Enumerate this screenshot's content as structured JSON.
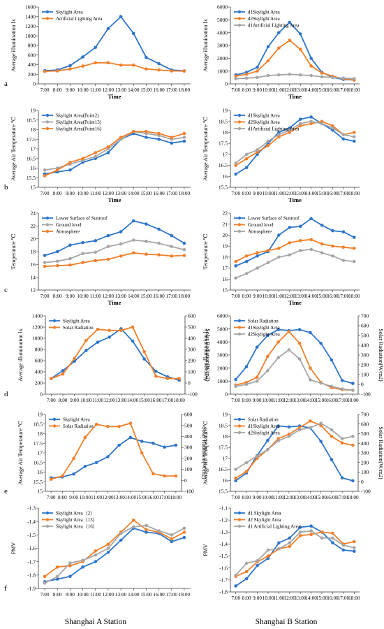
{
  "footer": {
    "left_caption": "Shanghai A Station",
    "right_caption": "Shanghai B Station"
  },
  "chart_data": [
    {
      "id": "aL",
      "type": "line",
      "panel_label": "a",
      "xlabel": "Time",
      "ylabel": "Average illumination lx",
      "categories": [
        "7:00",
        "8:00",
        "9:00",
        "10:00",
        "11:00",
        "12:00",
        "13:00",
        "14:00",
        "15:00",
        "16:00",
        "17:00",
        "18:00"
      ],
      "ylim": [
        0,
        1600
      ],
      "yticks": [
        0,
        200,
        400,
        600,
        800,
        1000,
        1200,
        1400,
        1600
      ],
      "legend": "top-left",
      "grid": false,
      "series": [
        {
          "name": "Skylight Area",
          "color": "#2e75c9",
          "values": [
            275,
            290,
            380,
            560,
            760,
            1150,
            1400,
            1050,
            550,
            420,
            290,
            270
          ]
        },
        {
          "name": "Artificial Lighting Area",
          "color": "#f07f2a",
          "values": [
            260,
            270,
            310,
            370,
            440,
            440,
            390,
            390,
            310,
            290,
            270,
            265
          ]
        }
      ]
    },
    {
      "id": "aR",
      "type": "line",
      "panel_label": "",
      "xlabel": "Time",
      "ylabel": "Average illumination lx",
      "categories": [
        "7:00",
        "8:00",
        "9:00",
        "10:00",
        "11:00",
        "12:00",
        "13:00",
        "14:00",
        "15:00",
        "16:00",
        "17:00",
        "18:00"
      ],
      "ylim": [
        0,
        6000
      ],
      "yticks": [
        0,
        1000,
        2000,
        3000,
        4000,
        5000,
        6000
      ],
      "legend": "top-left",
      "grid": false,
      "series": [
        {
          "name": "d1Skylight Area",
          "color": "#2e75c9",
          "values": [
            700,
            900,
            1300,
            2900,
            4000,
            4800,
            3900,
            2000,
            900,
            500,
            350,
            300
          ]
        },
        {
          "name": "d2Skylight Area",
          "color": "#f07f2a",
          "values": [
            600,
            750,
            1000,
            1800,
            2800,
            3400,
            2700,
            1400,
            850,
            600,
            400,
            300
          ]
        },
        {
          "name": "d1Artificial Lighting Area",
          "color": "#a6a6a6",
          "values": [
            400,
            450,
            500,
            650,
            700,
            750,
            700,
            650,
            550,
            500,
            450,
            400
          ]
        }
      ]
    },
    {
      "id": "bL",
      "type": "line",
      "panel_label": "b",
      "xlabel": "Time",
      "ylabel": "Average Air Temperature ℃",
      "categories": [
        "7:00",
        "8:00",
        "9:00",
        "10:00",
        "11:00",
        "12:00",
        "13:00",
        "14:00",
        "15:00",
        "16:00",
        "17:00",
        "18:00"
      ],
      "ylim": [
        15,
        19
      ],
      "yticks": [
        15,
        15.5,
        16,
        16.5,
        17,
        17.5,
        18,
        18.5,
        19
      ],
      "legend": "top-left",
      "grid": false,
      "series": [
        {
          "name": "Skylight Area(Point2)",
          "color": "#2e75c9",
          "values": [
            15.7,
            15.8,
            15.9,
            16.3,
            16.5,
            16.8,
            17.5,
            17.8,
            17.6,
            17.5,
            17.3,
            17.4
          ]
        },
        {
          "name": "Skylight Area(Point13)",
          "color": "#a6a6a6",
          "values": [
            15.9,
            16.0,
            16.2,
            16.4,
            16.6,
            17.0,
            17.5,
            17.9,
            17.8,
            17.7,
            17.5,
            17.6
          ]
        },
        {
          "name": "Skylight Area(Point16)",
          "color": "#f07f2a",
          "values": [
            15.6,
            15.9,
            16.3,
            16.5,
            16.8,
            17.1,
            17.6,
            17.9,
            17.9,
            17.8,
            17.6,
            17.8
          ]
        }
      ]
    },
    {
      "id": "bR",
      "type": "line",
      "panel_label": "",
      "xlabel": "Time",
      "ylabel": "Average Air Temperature ℃",
      "categories": [
        "7:00",
        "8:00",
        "9:00",
        "10:00",
        "11:00",
        "12:00",
        "13:00",
        "14:00",
        "15:00",
        "16:00",
        "17:00",
        "18:00"
      ],
      "ylim": [
        15.5,
        19
      ],
      "yticks": [
        15.5,
        16,
        16.5,
        17,
        17.5,
        18,
        18.5,
        19
      ],
      "legend": "top-left",
      "grid": false,
      "series": [
        {
          "name": "d1Skylight Area",
          "color": "#2e75c9",
          "values": [
            16.1,
            16.4,
            17.0,
            17.5,
            18.0,
            18.2,
            18.6,
            18.7,
            18.4,
            18.1,
            17.7,
            17.6
          ]
        },
        {
          "name": "d2Skylight Area",
          "color": "#f07f2a",
          "values": [
            16.5,
            16.8,
            17.1,
            17.4,
            17.8,
            18.0,
            18.3,
            18.4,
            18.5,
            18.3,
            17.9,
            18.0
          ]
        },
        {
          "name": "d1Artificial Lighting Area",
          "color": "#a6a6a6",
          "values": [
            16.6,
            17.0,
            17.2,
            17.6,
            17.9,
            18.1,
            18.4,
            18.5,
            18.4,
            18.2,
            17.9,
            17.8
          ]
        }
      ]
    },
    {
      "id": "cL",
      "type": "line",
      "panel_label": "c",
      "xlabel": "Time",
      "ylabel": "Temperature ℃",
      "categories": [
        "7:00",
        "8:00",
        "9:00",
        "10:00",
        "11:00",
        "12:00",
        "13:00",
        "14:00",
        "15:00",
        "16:00",
        "17:00",
        "18:00"
      ],
      "ylim": [
        12,
        24
      ],
      "yticks": [
        12,
        14,
        16,
        18,
        20,
        22,
        24
      ],
      "legend": "top-left",
      "grid": false,
      "series": [
        {
          "name": "Lower Surface of Sunroof",
          "color": "#2e75c9",
          "values": [
            17.4,
            18.0,
            19.0,
            19.4,
            19.7,
            20.5,
            21.1,
            22.8,
            22.3,
            21.5,
            20.5,
            19.3
          ]
        },
        {
          "name": "Ground level",
          "color": "#a6a6a6",
          "values": [
            16.3,
            16.5,
            16.9,
            17.7,
            17.9,
            18.8,
            19.2,
            19.8,
            19.6,
            19.3,
            18.8,
            18.3
          ]
        },
        {
          "name": "Atmosphere",
          "color": "#f07f2a",
          "values": [
            15.7,
            15.8,
            15.9,
            16.3,
            16.6,
            16.8,
            17.3,
            17.8,
            17.6,
            17.5,
            17.3,
            17.4
          ]
        }
      ]
    },
    {
      "id": "cR",
      "type": "line",
      "panel_label": "",
      "xlabel": "Time",
      "ylabel": "Temperature ℃",
      "categories": [
        "7:00",
        "8:00",
        "9:00",
        "10:00",
        "11:00",
        "12:00",
        "13:00",
        "14:00",
        "15:00",
        "16:00",
        "17:00",
        "18:00"
      ],
      "ylim": [
        15,
        22
      ],
      "yticks": [
        15,
        16,
        17,
        18,
        19,
        20,
        21,
        22
      ],
      "legend": "top-left",
      "grid": false,
      "series": [
        {
          "name": "Lower Surface of Sunroof",
          "color": "#2e75c9",
          "values": [
            17.2,
            17.6,
            18.1,
            18.5,
            20.0,
            20.7,
            20.8,
            21.5,
            20.9,
            20.4,
            20.3,
            19.8
          ]
        },
        {
          "name": "Ground level",
          "color": "#f07f2a",
          "values": [
            17.6,
            18.1,
            18.4,
            18.6,
            18.8,
            19.3,
            19.5,
            19.6,
            19.2,
            19.0,
            18.9,
            18.8
          ]
        },
        {
          "name": "Atmosphere",
          "color": "#a6a6a6",
          "values": [
            16.1,
            16.5,
            17.0,
            17.5,
            18.0,
            18.2,
            18.6,
            18.7,
            18.4,
            18.1,
            17.7,
            17.6
          ]
        }
      ]
    },
    {
      "id": "dL",
      "type": "line",
      "panel_label": "d",
      "xlabel": "",
      "ylabel": "Average illumination lx",
      "ylabel2": "Solar Radiation(W/m2)",
      "categories": [
        "7:00",
        "8:00",
        "9:00",
        "10:00",
        "11:00",
        "12:00",
        "13:00",
        "14:00",
        "15:00",
        "16:00",
        "17:00",
        "18:00"
      ],
      "ylim": [
        0,
        1400
      ],
      "yticks": [
        0,
        200,
        400,
        600,
        800,
        1000,
        1200,
        1400
      ],
      "ylim2": [
        -100,
        600
      ],
      "yticks2": [
        -100,
        0,
        100,
        200,
        300,
        400,
        500,
        600
      ],
      "legend": "top-left",
      "grid": false,
      "series": [
        {
          "name": "Skylight Area",
          "color": "#2e75c9",
          "axis": "left",
          "values": [
            280,
            420,
            590,
            780,
            930,
            1020,
            1170,
            950,
            630,
            410,
            310,
            250
          ]
        },
        {
          "name": "Solar Radiation",
          "color": "#f07f2a",
          "axis": "right",
          "values": [
            40,
            80,
            220,
            380,
            480,
            470,
            470,
            500,
            280,
            60,
            40,
            40
          ]
        }
      ]
    },
    {
      "id": "dR",
      "type": "line",
      "panel_label": "",
      "xlabel": "",
      "ylabel": "Average illumination lx",
      "ylabel2": "Solar Radiation(W/m2)",
      "categories": [
        "7:00",
        "8:00",
        "9:00",
        "10:00",
        "11:00",
        "12:00",
        "13:00",
        "14:00",
        "15:00",
        "16:00",
        "17:00",
        "18:00"
      ],
      "ylim": [
        0,
        6000
      ],
      "yticks": [
        0,
        1000,
        2000,
        3000,
        4000,
        5000,
        6000
      ],
      "ylim2": [
        -100,
        700
      ],
      "yticks2": [
        -100,
        0,
        100,
        200,
        300,
        400,
        500,
        600,
        700
      ],
      "legend": "top-left",
      "grid": false,
      "series": [
        {
          "name": "Solar Radiation",
          "color": "#2e75c9",
          "axis": "right",
          "values": [
            50,
            180,
            380,
            500,
            560,
            550,
            560,
            530,
            420,
            250,
            40,
            10
          ]
        },
        {
          "name": "d1Skylight Area",
          "color": "#f07f2a",
          "axis": "left",
          "values": [
            700,
            900,
            1300,
            2900,
            4000,
            4800,
            3900,
            2000,
            900,
            500,
            350,
            300
          ]
        },
        {
          "name": "d2Skylight Area",
          "color": "#a6a6a6",
          "axis": "left",
          "values": [
            600,
            750,
            1000,
            1800,
            2800,
            3400,
            2700,
            1100,
            850,
            600,
            400,
            300
          ]
        }
      ]
    },
    {
      "id": "eL",
      "type": "line",
      "panel_label": "e",
      "xlabel": "",
      "ylabel": "Average Air Temperature ℃",
      "ylabel2": "Solar Radiation(W/m2)",
      "categories": [
        "7:00",
        "8:00",
        "9:00",
        "10:00",
        "11:00",
        "12:00",
        "13:00",
        "14:00",
        "15:00",
        "16:00",
        "17:00",
        "18:00"
      ],
      "ylim": [
        15,
        19
      ],
      "yticks": [
        15,
        15.5,
        16,
        16.5,
        17,
        17.5,
        18,
        18.5,
        19
      ],
      "ylim2": [
        -100,
        600
      ],
      "yticks2": [
        -100,
        0,
        100,
        200,
        300,
        400,
        500,
        600
      ],
      "legend": "top-left",
      "grid": false,
      "series": [
        {
          "name": "Skylight Area",
          "color": "#2e75c9",
          "axis": "left",
          "values": [
            15.7,
            15.75,
            15.9,
            16.3,
            16.5,
            16.8,
            17.4,
            17.8,
            17.6,
            17.5,
            17.3,
            17.4
          ]
        },
        {
          "name": "Solar Radiation",
          "color": "#f07f2a",
          "axis": "right",
          "values": [
            10,
            40,
            200,
            390,
            510,
            490,
            490,
            520,
            250,
            60,
            40,
            40
          ]
        }
      ]
    },
    {
      "id": "eR",
      "type": "line",
      "panel_label": "",
      "xlabel": "",
      "ylabel": "Average Air Temperature ℃",
      "ylabel2": "Solar Radiation(W/m2)",
      "categories": [
        "7:00",
        "8:00",
        "9:00",
        "10:00",
        "11:00",
        "12:00",
        "13:00",
        "14:00",
        "15:00",
        "16:00",
        "17:00",
        "18:00"
      ],
      "ylim": [
        15.5,
        19
      ],
      "yticks": [
        15.5,
        16,
        16.5,
        17,
        17.5,
        18,
        18.5,
        19
      ],
      "ylim2": [
        -100,
        700
      ],
      "yticks2": [
        -100,
        0,
        100,
        200,
        300,
        400,
        500,
        600,
        700
      ],
      "legend": "top-left",
      "grid": false,
      "series": [
        {
          "name": "Solar Radiation",
          "color": "#2e75c9",
          "axis": "right",
          "values": [
            10,
            90,
            270,
            430,
            580,
            570,
            580,
            560,
            420,
            230,
            40,
            10
          ]
        },
        {
          "name": "d1Skylight Area",
          "color": "#f07f2a",
          "axis": "left",
          "values": [
            16.1,
            16.4,
            17.0,
            17.4,
            17.9,
            18.1,
            18.4,
            18.7,
            18.5,
            18.0,
            17.7,
            17.6
          ]
        },
        {
          "name": "d2Skylight Area",
          "color": "#a6a6a6",
          "axis": "left",
          "values": [
            16.5,
            16.8,
            17.1,
            17.4,
            17.8,
            18.0,
            18.3,
            18.4,
            18.6,
            18.3,
            17.9,
            18.0
          ]
        }
      ]
    },
    {
      "id": "fL",
      "type": "line",
      "panel_label": "f",
      "xlabel": "",
      "ylabel": "PMV",
      "categories": [
        "7:00",
        "8:00",
        "9:00",
        "10:00",
        "11:00",
        "12:00",
        "13:00",
        "14:00",
        "15:00",
        "16:00",
        "17:00",
        "18:00"
      ],
      "ylim": [
        -1.9,
        -1.3
      ],
      "yticks": [
        -1.9,
        -1.8,
        -1.7,
        -1.6,
        -1.5,
        -1.4,
        -1.3
      ],
      "legend": "top-left",
      "grid": false,
      "series": [
        {
          "name": "Skylight Area（2）",
          "color": "#2e75c9",
          "values": [
            -1.85,
            -1.83,
            -1.81,
            -1.74,
            -1.7,
            -1.63,
            -1.54,
            -1.45,
            -1.48,
            -1.49,
            -1.55,
            -1.52
          ]
        },
        {
          "name": "Skylight Area（13）",
          "color": "#f07f2a",
          "values": [
            -1.81,
            -1.74,
            -1.73,
            -1.7,
            -1.62,
            -1.57,
            -1.48,
            -1.39,
            -1.46,
            -1.48,
            -1.53,
            -1.48
          ]
        },
        {
          "name": "Skylight Area（16）",
          "color": "#a6a6a6",
          "values": [
            -1.86,
            -1.81,
            -1.71,
            -1.69,
            -1.65,
            -1.6,
            -1.49,
            -1.44,
            -1.43,
            -1.47,
            -1.5,
            -1.45
          ]
        }
      ]
    },
    {
      "id": "fR",
      "type": "line",
      "panel_label": "",
      "xlabel": "",
      "ylabel": "PMV",
      "categories": [
        "7:00",
        "8:00",
        "9:00",
        "10:00",
        "11:00",
        "12:00",
        "13:00",
        "14:00",
        "15:00",
        "16:00",
        "17:00",
        "18:00"
      ],
      "ylim": [
        -1.8,
        -1.1
      ],
      "yticks": [
        -1.8,
        -1.7,
        -1.6,
        -1.5,
        -1.4,
        -1.3,
        -1.2,
        -1.1
      ],
      "legend": "top-left",
      "grid": false,
      "series": [
        {
          "name": "d1 Skylight Area",
          "color": "#2e75c9",
          "values": [
            -1.75,
            -1.69,
            -1.58,
            -1.52,
            -1.39,
            -1.35,
            -1.26,
            -1.25,
            -1.3,
            -1.39,
            -1.45,
            -1.46
          ]
        },
        {
          "name": "d2 Skylight Area",
          "color": "#f07f2a",
          "values": [
            -1.67,
            -1.63,
            -1.55,
            -1.5,
            -1.44,
            -1.42,
            -1.33,
            -1.32,
            -1.3,
            -1.31,
            -1.4,
            -1.38
          ]
        },
        {
          "name": "d1 Artificial Lighting Area",
          "color": "#a6a6a6",
          "values": [
            -1.66,
            -1.56,
            -1.54,
            -1.45,
            -1.44,
            -1.39,
            -1.3,
            -1.29,
            -1.35,
            -1.35,
            -1.41,
            -1.43
          ]
        }
      ]
    }
  ]
}
